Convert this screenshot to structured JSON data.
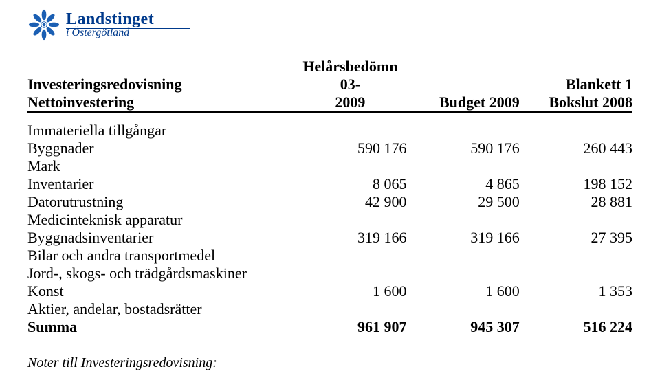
{
  "logo": {
    "title": "Landstinget",
    "subtitle": "i Östergötland",
    "color": "#003a8c"
  },
  "header": {
    "title": "Investeringsredovisning",
    "blankett": "Blankett 1",
    "sub_label": "Nettoinvestering",
    "col1_line1": "Helårsbedömn 03-",
    "col1_line2": "2009",
    "col2": "Budget 2009",
    "col3": "Bokslut 2008"
  },
  "rows": [
    {
      "label": "Immateriella tillgångar",
      "c1": "",
      "c2": "",
      "c3": ""
    },
    {
      "label": "Byggnader",
      "c1": "590 176",
      "c2": "590 176",
      "c3": "260 443"
    },
    {
      "label": "Mark",
      "c1": "",
      "c2": "",
      "c3": ""
    },
    {
      "label": "Inventarier",
      "c1": "8 065",
      "c2": "4 865",
      "c3": "198 152"
    },
    {
      "label": "Datorutrustning",
      "c1": "42 900",
      "c2": "29 500",
      "c3": "28 881"
    },
    {
      "label": "Medicinteknisk apparatur",
      "c1": "",
      "c2": "",
      "c3": ""
    },
    {
      "label": "Byggnadsinventarier",
      "c1": "319 166",
      "c2": "319 166",
      "c3": "27 395"
    },
    {
      "label": "Bilar och andra transportmedel",
      "c1": "",
      "c2": "",
      "c3": ""
    },
    {
      "label": "Jord-, skogs- och trädgårdsmaskiner",
      "c1": "",
      "c2": "",
      "c3": ""
    },
    {
      "label": "Konst",
      "c1": "1 600",
      "c2": "1 600",
      "c3": "1 353"
    },
    {
      "label": "Aktier, andelar, bostadsrätter",
      "c1": "",
      "c2": "",
      "c3": ""
    }
  ],
  "sum": {
    "label": "Summa",
    "c1": "961 907",
    "c2": "945 307",
    "c3": "516 224"
  },
  "notes": "Noter till Investeringsredovisning:"
}
